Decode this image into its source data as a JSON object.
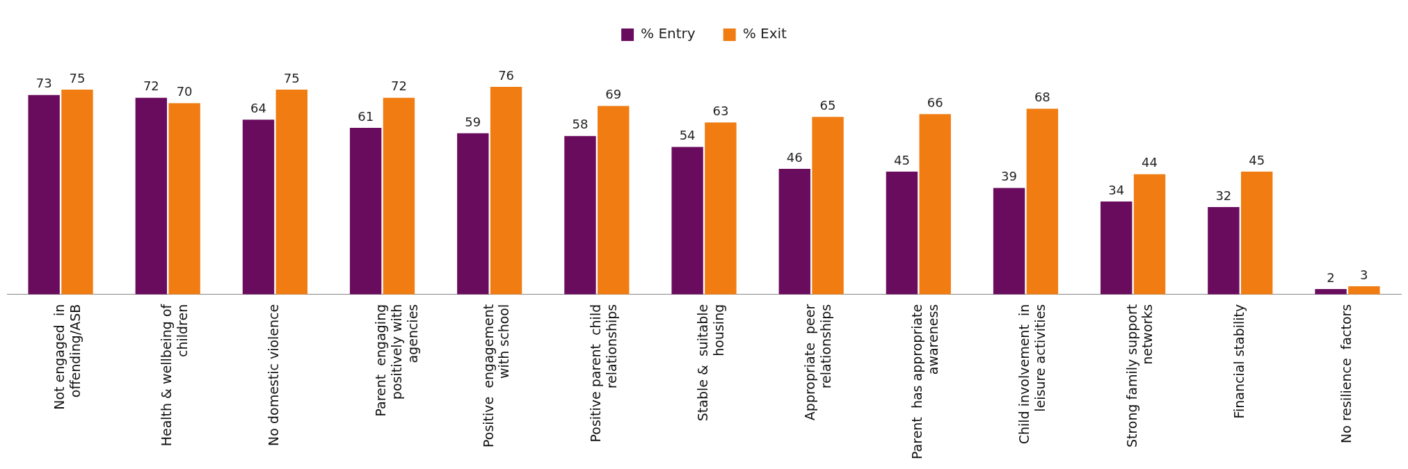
{
  "chart_data": {
    "type": "bar",
    "categories": [
      "Not engaged  in\noffending/ASB",
      "Health & wellbeing of\nchildren",
      "No domestic violence",
      "Parent  engaging\npositively with\nagencies",
      "Positive  engagement\nwith school",
      "Positive parent  child\nrelationships",
      "Stable &  suitable\nhousing",
      "Appropriate  peer\nrelationships",
      "Parent  has appropriate\nawareness",
      "Child involvement  in\nleisure activities",
      "Strong family support\nnetworks",
      "Financial stability",
      "No resilience  factors"
    ],
    "series": [
      {
        "name": "% Entry",
        "color": "#6a0c5e",
        "values": [
          73,
          72,
          64,
          61,
          59,
          58,
          54,
          46,
          45,
          39,
          34,
          32,
          2
        ]
      },
      {
        "name": "% Exit",
        "color": "#f07c12",
        "values": [
          75,
          70,
          75,
          72,
          76,
          69,
          63,
          65,
          66,
          68,
          44,
          45,
          3
        ]
      }
    ],
    "data_labels": true,
    "legend": "top",
    "grid": false,
    "tick_labels": "x"
  }
}
